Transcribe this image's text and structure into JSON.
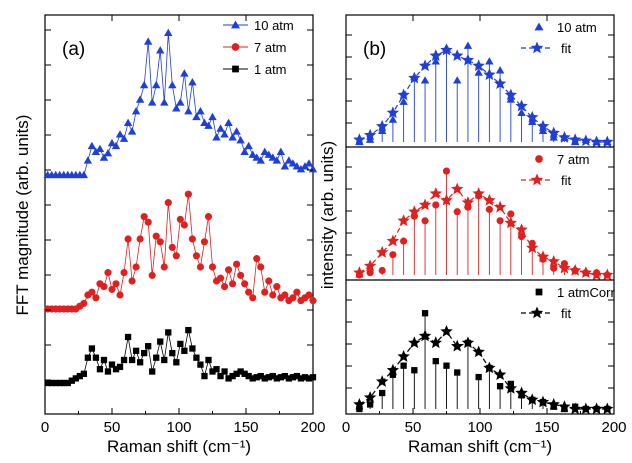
{
  "chart_data": [
    {
      "type": "line",
      "panel_label": "(a)",
      "xlabel": "Raman shift (cm⁻¹)",
      "ylabel": "FFT magnitude (arb. units)",
      "xlim": [
        0,
        200
      ],
      "xticks": [
        "0",
        "50",
        "100",
        "150",
        "200"
      ],
      "legend_position": "top-right",
      "series": [
        {
          "name": "10 atm",
          "color": "#1f3fd6",
          "marker": "triangle",
          "offset": 2.0,
          "x": [
            2,
            5,
            8,
            11,
            14,
            17,
            20,
            23,
            26,
            29,
            32,
            35,
            38,
            41,
            44,
            47,
            50,
            53,
            56,
            59,
            62,
            65,
            68,
            71,
            74,
            77,
            80,
            83,
            86,
            89,
            92,
            95,
            98,
            101,
            104,
            107,
            110,
            113,
            116,
            119,
            122,
            125,
            128,
            131,
            134,
            137,
            140,
            143,
            146,
            149,
            152,
            155,
            158,
            161,
            164,
            167,
            170,
            173,
            176,
            179,
            182,
            185,
            188,
            191,
            194,
            197,
            200
          ],
          "y": [
            0,
            0,
            0,
            0,
            0,
            0,
            0,
            0,
            0,
            0,
            0.1,
            0.2,
            0.16,
            0.18,
            0.12,
            0.15,
            0.22,
            0.2,
            0.28,
            0.25,
            0.36,
            0.3,
            0.44,
            0.52,
            0.62,
            0.92,
            0.5,
            0.62,
            0.86,
            0.5,
            0.98,
            0.62,
            0.46,
            0.5,
            0.7,
            0.44,
            0.64,
            0.4,
            0.44,
            0.36,
            0.34,
            0.4,
            0.26,
            0.32,
            0.28,
            0.36,
            0.26,
            0.3,
            0.24,
            0.16,
            0.2,
            0.14,
            0.12,
            0.1,
            0.16,
            0.14,
            0.12,
            0.1,
            0.16,
            0.06,
            0.1,
            0.08,
            0.06,
            0.04,
            0.06,
            0.08,
            0.04
          ]
        },
        {
          "name": "7 atm",
          "color": "#e0201e",
          "marker": "circle",
          "offset": 1.0,
          "x": [
            2,
            5,
            8,
            11,
            14,
            17,
            20,
            23,
            26,
            29,
            32,
            35,
            38,
            41,
            44,
            47,
            50,
            53,
            56,
            59,
            62,
            65,
            68,
            71,
            74,
            77,
            80,
            83,
            86,
            89,
            92,
            95,
            98,
            101,
            104,
            107,
            110,
            113,
            116,
            119,
            122,
            125,
            128,
            131,
            134,
            137,
            140,
            143,
            146,
            149,
            152,
            155,
            158,
            161,
            164,
            167,
            170,
            173,
            176,
            179,
            182,
            185,
            188,
            191,
            194,
            197,
            200
          ],
          "y": [
            0,
            0,
            0,
            0,
            0,
            0,
            0,
            0,
            0.02,
            0.04,
            0.1,
            0.12,
            0.08,
            0.18,
            0.16,
            0.26,
            0.14,
            0.18,
            0.1,
            0.26,
            0.5,
            0.2,
            0.3,
            0.5,
            0.66,
            0.62,
            0.24,
            0.52,
            0.48,
            0.3,
            0.76,
            0.44,
            0.38,
            0.64,
            0.6,
            0.82,
            0.5,
            0.38,
            0.3,
            0.48,
            0.66,
            0.3,
            0.2,
            0.22,
            0.16,
            0.28,
            0.18,
            0.32,
            0.24,
            0.18,
            0.12,
            0.08,
            0.36,
            0.3,
            0.12,
            0.2,
            0.1,
            0.16,
            0.08,
            0.1,
            0.06,
            0.08,
            0.12,
            0.06,
            0.08,
            0.1,
            0.06
          ]
        },
        {
          "name": "1 atm",
          "color": "#000000",
          "marker": "square",
          "offset": 0.0,
          "x": [
            2,
            5,
            8,
            11,
            14,
            17,
            20,
            23,
            26,
            29,
            32,
            35,
            38,
            41,
            44,
            47,
            50,
            53,
            56,
            59,
            62,
            65,
            68,
            71,
            74,
            77,
            80,
            83,
            86,
            89,
            92,
            95,
            98,
            101,
            104,
            107,
            110,
            113,
            116,
            119,
            122,
            125,
            128,
            131,
            134,
            137,
            140,
            143,
            146,
            149,
            152,
            155,
            158,
            161,
            164,
            167,
            170,
            173,
            176,
            179,
            182,
            185,
            188,
            191,
            194,
            197,
            200
          ],
          "y": [
            0,
            0,
            0,
            0,
            0,
            0,
            0.02,
            0.04,
            0.06,
            0.08,
            0.22,
            0.3,
            0.22,
            0.12,
            0.2,
            0.1,
            0.16,
            0.12,
            0.14,
            0.2,
            0.4,
            0.2,
            0.28,
            0.18,
            0.26,
            0.32,
            0.1,
            0.22,
            0.36,
            0.2,
            0.44,
            0.26,
            0.18,
            0.34,
            0.28,
            0.46,
            0.3,
            0.22,
            0.16,
            0.06,
            0.2,
            0.1,
            0.12,
            0.06,
            0.1,
            0.04,
            0.06,
            0.08,
            0.1,
            0.08,
            0.06,
            0.04,
            0.05,
            0.06,
            0.04,
            0.05,
            0.06,
            0.04,
            0.05,
            0.06,
            0.04,
            0.05,
            0.06,
            0.04,
            0.05,
            0.04,
            0.05
          ]
        }
      ]
    },
    {
      "type": "stem",
      "panel_label": "(b)",
      "xlabel": "Raman shift (cm⁻¹)",
      "ylabel": "intensity (arb. units)",
      "xlim": [
        0,
        200
      ],
      "xticks": [
        "0",
        "50",
        "100",
        "150",
        "200"
      ],
      "legend_position": "top-right",
      "subpanels": [
        {
          "name": "10 atm",
          "fit_name": "fit",
          "color": "#1f3fd6",
          "marker": "triangle",
          "x": [
            10,
            18,
            27,
            35,
            43,
            51,
            59,
            67,
            75,
            83,
            91,
            99,
            107,
            115,
            123,
            131,
            139,
            147,
            155,
            163,
            171,
            179,
            187,
            195
          ],
          "data": [
            0.0,
            0.02,
            0.1,
            0.2,
            0.36,
            0.58,
            0.55,
            0.72,
            0.84,
            0.55,
            0.86,
            0.62,
            0.72,
            0.64,
            0.38,
            0.26,
            0.18,
            0.1,
            0.04,
            0.04,
            0.0,
            0.02,
            0.0,
            0.0
          ],
          "fit": [
            0.02,
            0.06,
            0.14,
            0.26,
            0.42,
            0.57,
            0.68,
            0.77,
            0.82,
            0.77,
            0.73,
            0.68,
            0.6,
            0.52,
            0.42,
            0.32,
            0.22,
            0.14,
            0.08,
            0.04,
            0.02,
            0.01,
            0.0,
            0.0
          ]
        },
        {
          "name": "7 atm",
          "fit_name": "fit",
          "color": "#e0201e",
          "marker": "circle",
          "x": [
            10,
            18,
            27,
            35,
            43,
            51,
            59,
            67,
            75,
            83,
            91,
            99,
            107,
            115,
            123,
            131,
            139,
            147,
            155,
            163,
            171,
            179,
            187,
            195
          ],
          "data": [
            0.0,
            0.02,
            0.04,
            0.18,
            0.3,
            0.52,
            0.48,
            0.62,
            0.92,
            0.56,
            0.6,
            0.7,
            0.58,
            0.48,
            0.54,
            0.34,
            0.28,
            0.14,
            0.06,
            0.1,
            0.04,
            0.02,
            0.02,
            0.0
          ],
          "fit": [
            0.02,
            0.08,
            0.2,
            0.3,
            0.48,
            0.56,
            0.62,
            0.72,
            0.66,
            0.76,
            0.64,
            0.72,
            0.66,
            0.6,
            0.46,
            0.4,
            0.24,
            0.16,
            0.12,
            0.06,
            0.04,
            0.02,
            0.0,
            0.0
          ]
        },
        {
          "name": "1 atmCorr",
          "fit_name": "fit",
          "color": "#000000",
          "marker": "square",
          "x": [
            10,
            18,
            27,
            35,
            43,
            51,
            59,
            67,
            75,
            83,
            91,
            99,
            107,
            115,
            123,
            131,
            139,
            147,
            155,
            163,
            171,
            179,
            187,
            195
          ],
          "data": [
            0.0,
            0.04,
            0.14,
            0.3,
            0.38,
            0.34,
            0.84,
            0.42,
            0.38,
            0.32,
            0.58,
            0.28,
            0.36,
            0.2,
            0.22,
            0.12,
            0.08,
            0.06,
            0.02,
            0.0,
            0.02,
            0.0,
            0.0,
            0.0
          ],
          "fit": [
            0.04,
            0.1,
            0.24,
            0.34,
            0.46,
            0.58,
            0.64,
            0.58,
            0.68,
            0.55,
            0.58,
            0.5,
            0.36,
            0.3,
            0.18,
            0.14,
            0.08,
            0.06,
            0.04,
            0.02,
            0.0,
            0.0,
            0.0,
            0.0
          ]
        }
      ]
    }
  ]
}
